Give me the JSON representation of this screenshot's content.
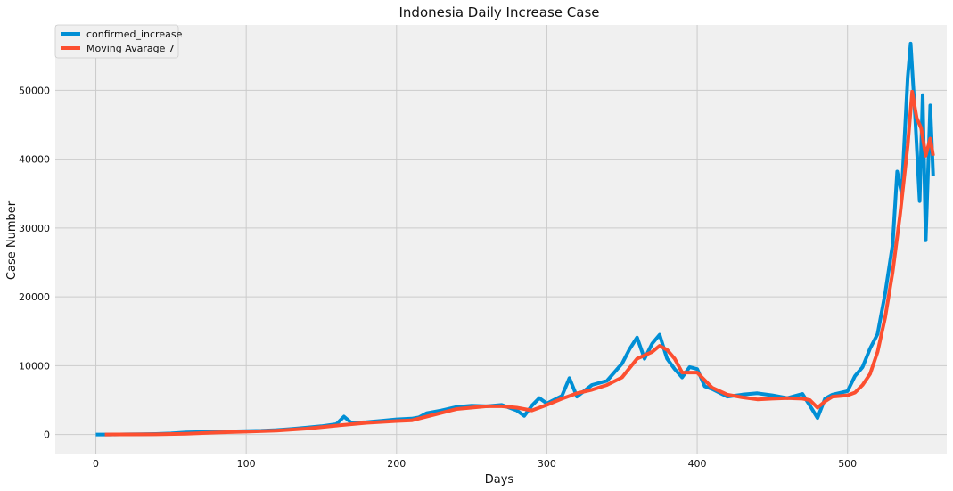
{
  "chart_data": {
    "type": "line",
    "title": "Indonesia Daily Increase Case",
    "xlabel": "Days",
    "ylabel": "Case Number",
    "xlim": [
      -27,
      566
    ],
    "ylim": [
      -2900,
      59500
    ],
    "xticks": [
      0,
      100,
      200,
      300,
      400,
      500
    ],
    "yticks": [
      0,
      10000,
      20000,
      30000,
      40000,
      50000
    ],
    "grid": true,
    "legend_position": "top-left",
    "series": [
      {
        "name": "confirmed_increase",
        "color": "#008fd5",
        "x": [
          0,
          10,
          20,
          30,
          40,
          50,
          60,
          70,
          80,
          90,
          100,
          110,
          120,
          130,
          140,
          150,
          160,
          165,
          170,
          180,
          190,
          200,
          210,
          215,
          220,
          230,
          240,
          250,
          260,
          270,
          280,
          285,
          290,
          295,
          300,
          310,
          315,
          320,
          330,
          340,
          350,
          355,
          360,
          365,
          370,
          375,
          380,
          385,
          390,
          395,
          400,
          405,
          410,
          420,
          430,
          440,
          450,
          460,
          470,
          475,
          480,
          485,
          490,
          500,
          505,
          510,
          515,
          520,
          525,
          530,
          533,
          536,
          540,
          542,
          545,
          548,
          550,
          552,
          555,
          557
        ],
        "y": [
          0,
          5,
          20,
          40,
          80,
          150,
          300,
          350,
          400,
          450,
          500,
          550,
          650,
          800,
          1000,
          1200,
          1500,
          2600,
          1700,
          1800,
          2000,
          2200,
          2300,
          2500,
          3100,
          3500,
          4000,
          4200,
          4100,
          4300,
          3500,
          2700,
          4200,
          5300,
          4500,
          5600,
          8200,
          5500,
          7200,
          7800,
          10300,
          12400,
          14100,
          11000,
          13200,
          14500,
          11000,
          9500,
          8300,
          9800,
          9500,
          7000,
          6600,
          5500,
          5800,
          6000,
          5700,
          5300,
          5900,
          4200,
          2400,
          5200,
          5800,
          6300,
          8500,
          9800,
          12500,
          14600,
          20500,
          27600,
          38200,
          35000,
          51900,
          56800,
          46000,
          33900,
          49300,
          28200,
          47800,
          37500
        ]
      },
      {
        "name": "Moving Avarage 7",
        "color": "#fc4f30",
        "x": [
          6,
          20,
          40,
          60,
          80,
          100,
          120,
          140,
          160,
          180,
          200,
          210,
          220,
          240,
          260,
          270,
          280,
          290,
          300,
          310,
          320,
          330,
          340,
          350,
          360,
          370,
          375,
          380,
          385,
          390,
          400,
          410,
          420,
          430,
          440,
          450,
          460,
          470,
          475,
          480,
          485,
          490,
          500,
          505,
          510,
          515,
          520,
          525,
          530,
          535,
          540,
          543,
          546,
          549,
          552,
          555,
          557
        ],
        "y": [
          0,
          10,
          30,
          120,
          280,
          420,
          560,
          850,
          1300,
          1700,
          1950,
          2050,
          2600,
          3700,
          4100,
          4100,
          3900,
          3500,
          4300,
          5200,
          6000,
          6500,
          7200,
          8300,
          11000,
          12000,
          12900,
          12300,
          11000,
          9000,
          9000,
          6800,
          5800,
          5400,
          5100,
          5200,
          5300,
          5200,
          5000,
          3900,
          4800,
          5500,
          5700,
          6100,
          7200,
          8800,
          12000,
          17000,
          23600,
          32000,
          42000,
          49800,
          46000,
          44500,
          40500,
          43000,
          40500
        ]
      }
    ]
  }
}
